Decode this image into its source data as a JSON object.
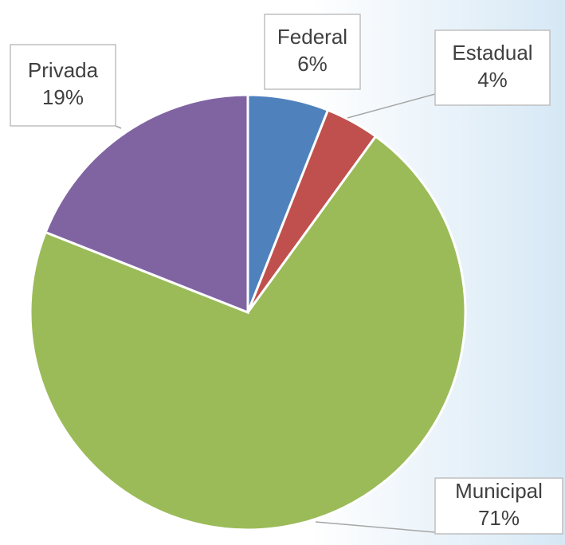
{
  "chart_data": {
    "type": "pie",
    "categories": [
      "Federal",
      "Estadual",
      "Municipal",
      "Privada"
    ],
    "values": [
      6,
      4,
      71,
      19
    ],
    "value_labels": [
      "6%",
      "4%",
      "71%",
      "19%"
    ],
    "colors": [
      "#4f81bd",
      "#c0504d",
      "#9bbb59",
      "#8064a2"
    ]
  }
}
